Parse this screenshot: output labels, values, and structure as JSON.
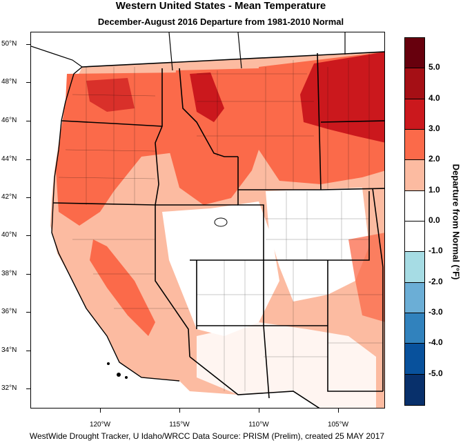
{
  "title": "Western United States - Mean Temperature",
  "subtitle": "December-August 2016  Departure from 1981-2010 Normal",
  "lat_labels": [
    "50°N",
    "48°N",
    "46°N",
    "44°N",
    "42°N",
    "40°N",
    "38°N",
    "36°N",
    "34°N",
    "32°N"
  ],
  "lon_labels": [
    "120°W",
    "115°W",
    "110°W",
    "105°W"
  ],
  "colorbar": {
    "title": "Departure from Normal (°F)",
    "labels": [
      "5.0",
      "4.0",
      "3.0",
      "2.0",
      "1.0",
      "0.0",
      "-1.0",
      "-2.0",
      "-3.0",
      "-4.0",
      "-5.0"
    ],
    "colors": [
      "#67000d",
      "#a50f15",
      "#cb181d",
      "#fb6a4a",
      "#fcbba1",
      "#ffffff",
      "#ffffff",
      "#a6dce4",
      "#6baed6",
      "#3182bd",
      "#08519c",
      "#08306b"
    ]
  },
  "footer": "WestWide Drought Tracker, U Idaho/WRCC Data Source: PRISM (Prelim), created 25 MAY 2017"
}
